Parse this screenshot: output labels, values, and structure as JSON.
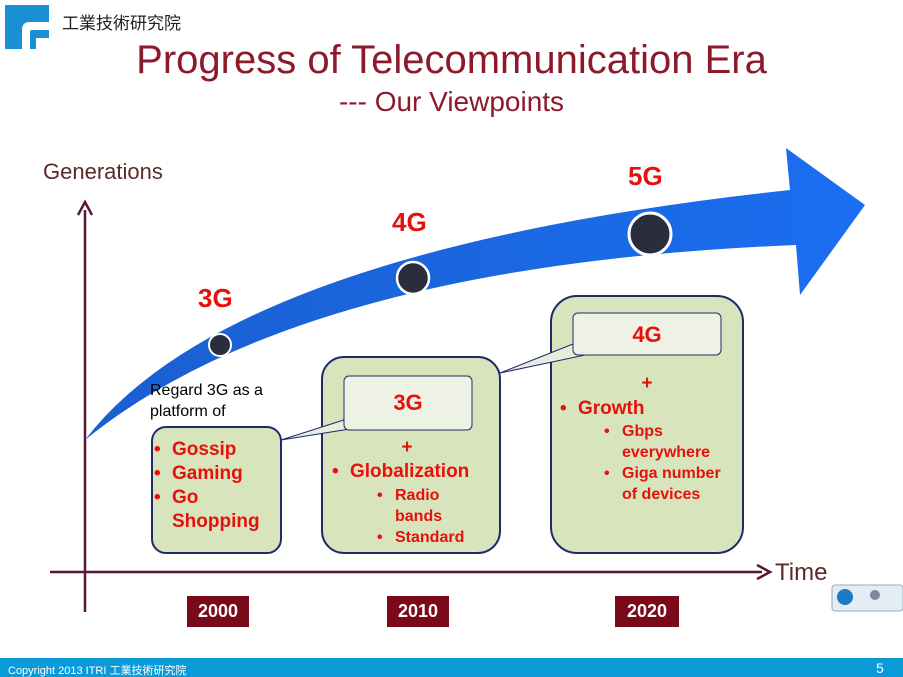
{
  "header": {
    "org": "工業技術研究院",
    "title": "Progress of Telecommunication Era",
    "subtitle": "--- Our Viewpoints"
  },
  "axes": {
    "y_label": "Generations",
    "x_label": "Time"
  },
  "generations": [
    {
      "label": "3G"
    },
    {
      "label": "4G"
    },
    {
      "label": "5G"
    }
  ],
  "note": "Regard 3G as a platform of",
  "boxes": [
    {
      "bullets": [
        "Gossip",
        "Gaming",
        "Go Shopping"
      ]
    },
    {
      "callout": "3G",
      "plus": "+",
      "bullet": "Globalization",
      "sub": [
        "Radio bands",
        "Standard"
      ]
    },
    {
      "callout": "4G",
      "plus": "+",
      "bullet": "Growth",
      "sub": [
        "Gbps everywhere",
        "Giga number of devices"
      ]
    }
  ],
  "years": [
    "2000",
    "2010",
    "2020"
  ],
  "footer": {
    "copyright": "Copyright 2013  ITRI 工業技術研究院",
    "page": "5"
  }
}
